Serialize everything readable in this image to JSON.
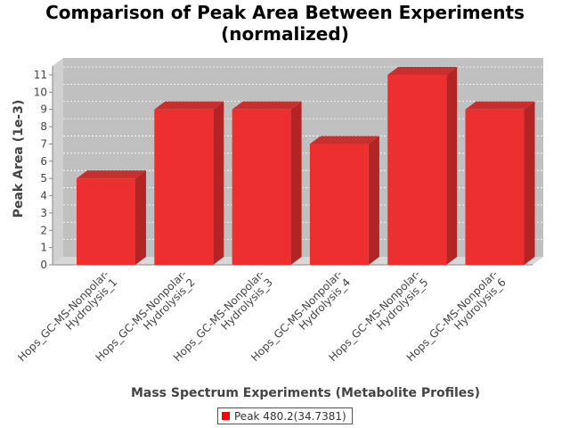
{
  "chart_data": {
    "type": "bar",
    "title_line1": "Comparison of Peak Area Between Experiments",
    "title_line2": "(normalized)",
    "xlabel": "Mass Spectrum Experiments (Metabolite Profiles)",
    "ylabel": "Peak Area (1e-3)",
    "categories": [
      [
        "Hops_GC-MS-Nonpolar-",
        "Hydrolysis_1"
      ],
      [
        "Hops_GC-MS-Nonpolar-",
        "Hydrolysis_2"
      ],
      [
        "Hops_GC-MS-Nonpolar-",
        "Hydrolysis_3"
      ],
      [
        "Hops_GC-MS-Nonpolar-",
        "Hydrolysis_4"
      ],
      [
        "Hops_GC-MS-Nonpolar-",
        "Hydrolysis_5"
      ],
      [
        "Hops_GC-MS-Nonpolar-",
        "Hydrolysis_6"
      ]
    ],
    "series": [
      {
        "name": "Peak 480.2(34.7381)",
        "values": [
          5,
          9,
          9,
          7,
          11,
          9
        ],
        "color": "#ff0000"
      }
    ],
    "ylim": [
      0,
      11
    ],
    "yticks": [
      0,
      1,
      2,
      3,
      4,
      5,
      6,
      7,
      8,
      9,
      10,
      11
    ],
    "grid": true,
    "legend_position": "bottom-center",
    "render_3d": true
  }
}
